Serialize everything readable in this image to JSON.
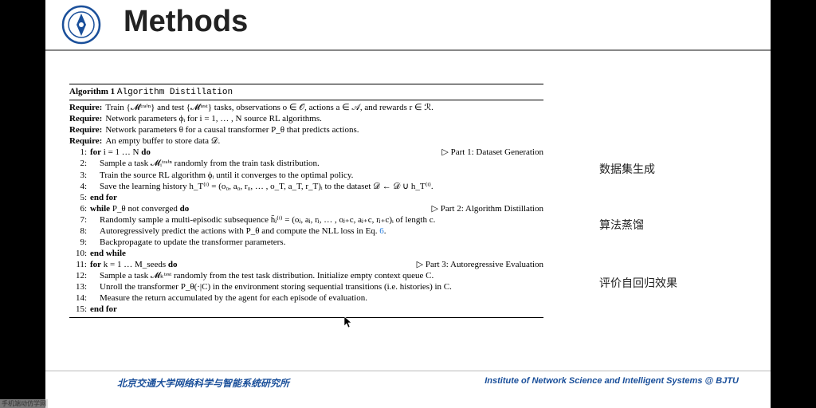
{
  "header": {
    "title": "Methods"
  },
  "logo": {
    "outer_color": "#1a4f9a",
    "inner_color": "#ffffff",
    "size": 50
  },
  "algorithm": {
    "label": "Algorithm 1",
    "name": "Algorithm Distillation",
    "requires": [
      "Train {𝓜ᵗʳᵃⁱⁿ} and test {𝓜ᵗᵉˢᵗ} tasks, observations o ∈ 𝒪, actions a ∈ 𝒜, and rewards r ∈ ℛ.",
      "Network parameters ϕᵢ for i = 1, … , N source RL algorithms.",
      "Network parameters θ for a causal transformer P_θ that predicts actions.",
      "An empty buffer to store data 𝒟."
    ],
    "lines": [
      {
        "n": "1:",
        "ind": 0,
        "text": "for i = 1 … N do",
        "kw": true,
        "comment": "▷ Part 1: Dataset Generation"
      },
      {
        "n": "2:",
        "ind": 1,
        "text": "Sample a task 𝓜ᵢᵗʳᵃⁱⁿ randomly from the train task distribution."
      },
      {
        "n": "3:",
        "ind": 1,
        "text": "Train the source RL algorithm ϕᵢ until it converges to the optimal policy."
      },
      {
        "n": "4:",
        "ind": 1,
        "text": "Save the learning history h_T⁽ⁱ⁾ = (o₀, a₀, r₀, … , o_T, a_T, r_T)ᵢ to the dataset 𝒟 ← 𝒟 ∪ h_T⁽ⁱ⁾."
      },
      {
        "n": "5:",
        "ind": 0,
        "text": "end for",
        "kw": true
      },
      {
        "n": "6:",
        "ind": 0,
        "text": "while P_θ not converged do",
        "kw": true,
        "comment": "▷ Part 2: Algorithm Distillation"
      },
      {
        "n": "7:",
        "ind": 1,
        "text": "Randomly sample a multi-episodic subsequence h̄ⱼ⁽ⁱ⁾ = (oⱼ, aⱼ, rⱼ, … , oⱼ₊c, aⱼ₊c, rⱼ₊c)ᵢ of length c."
      },
      {
        "n": "8:",
        "ind": 1,
        "text": "Autoregressively predict the actions with P_θ and compute the NLL loss in Eq. 6."
      },
      {
        "n": "9:",
        "ind": 1,
        "text": "Backpropagate to update the transformer parameters."
      },
      {
        "n": "10:",
        "ind": 0,
        "text": "end while",
        "kw": true
      },
      {
        "n": "11:",
        "ind": 0,
        "text": "for k = 1 … M_seeds do",
        "kw": true,
        "comment": "▷ Part 3: Autoregressive Evaluation"
      },
      {
        "n": "12:",
        "ind": 1,
        "text": "Sample a task 𝓜ₖᵗᵉˢᵗ randomly from the test task distribution. Initialize empty context queue C."
      },
      {
        "n": "13:",
        "ind": 1,
        "text": "Unroll the transformer P_θ(·|C) in the environment storing sequential transitions (i.e. histories) in C."
      },
      {
        "n": "14:",
        "ind": 1,
        "text": "Measure the return accumulated by the agent for each episode of evaluation."
      },
      {
        "n": "15:",
        "ind": 0,
        "text": "end for",
        "kw": true
      }
    ]
  },
  "annotations": {
    "a1": "数据集生成",
    "a2": "算法蒸馏",
    "a3": "评价自回归效果"
  },
  "footer": {
    "left": "北京交通大学网络科学与智能系统研究所",
    "right": "Institute of Network Science and Intelligent Systems @ BJTU"
  },
  "watermark": "手机端动仿学网",
  "colors": {
    "letterbox": "#000000",
    "slide_bg": "#ffffff",
    "header_rule": "#888888",
    "text": "#000000",
    "accent": "#1a4f9a",
    "eq_ref": "#2a7fde"
  }
}
